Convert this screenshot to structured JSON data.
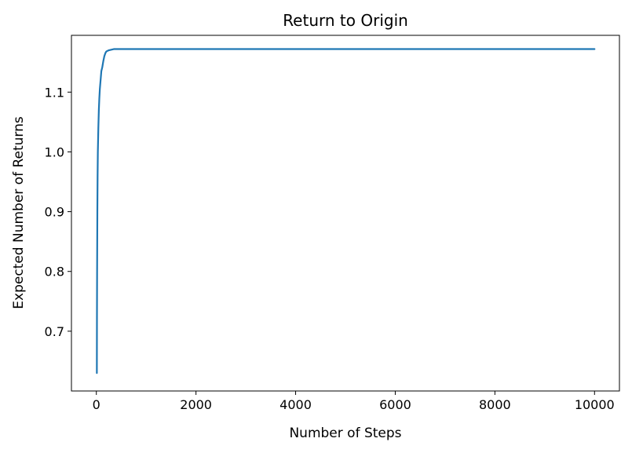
{
  "chart_data": {
    "type": "line",
    "title": "Return to Origin",
    "xlabel": "Number of Steps",
    "ylabel": "Expected Number of Returns",
    "xlim": [
      -500,
      10500
    ],
    "ylim": [
      0.6,
      1.195
    ],
    "xticks": [
      0,
      2000,
      4000,
      6000,
      8000,
      10000
    ],
    "yticks": [
      0.7,
      0.8,
      0.9,
      1.0,
      1.1
    ],
    "ytick_labels": [
      "0.7",
      "0.8",
      "0.9",
      "1.0",
      "1.1"
    ],
    "grid": false,
    "color": "#1f77b4",
    "series": [
      {
        "x": [
          10,
          12,
          15,
          20,
          25,
          30,
          40,
          50,
          60,
          70,
          80,
          90,
          100,
          120,
          140,
          160,
          180,
          200,
          250,
          300,
          350,
          400,
          500,
          1000,
          2000,
          4000,
          6000,
          8000,
          10000
        ],
        "values": [
          0.63,
          0.72,
          0.8,
          0.9,
          0.96,
          1.0,
          1.04,
          1.07,
          1.09,
          1.105,
          1.115,
          1.125,
          1.135,
          1.142,
          1.152,
          1.16,
          1.165,
          1.168,
          1.17,
          1.171,
          1.172,
          1.172,
          1.172,
          1.172,
          1.172,
          1.172,
          1.172,
          1.172,
          1.172
        ]
      }
    ]
  }
}
